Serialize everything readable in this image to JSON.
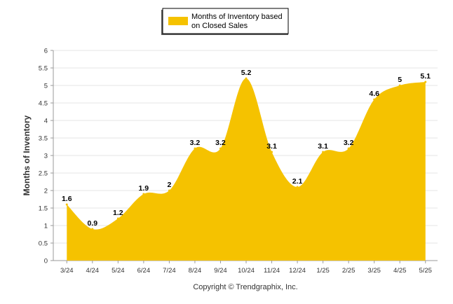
{
  "chart_data": {
    "type": "area",
    "categories": [
      "3/24",
      "4/24",
      "5/24",
      "6/24",
      "7/24",
      "8/24",
      "9/24",
      "10/24",
      "11/24",
      "12/24",
      "1/25",
      "2/25",
      "3/25",
      "4/25",
      "5/25"
    ],
    "series": [
      {
        "name": "Months of Inventory based on Closed Sales",
        "values": [
          1.6,
          0.9,
          1.2,
          1.9,
          2,
          3.2,
          3.2,
          5.2,
          3.1,
          2.1,
          3.1,
          3.2,
          4.6,
          5,
          5.1
        ],
        "color": "#F5C200"
      }
    ],
    "data_labels": [
      "1.6",
      "0.9",
      "1.2",
      "1.9",
      "2",
      "3.2",
      "3.2",
      "5.2",
      "3.1",
      "2.1",
      "3.1",
      "3.2",
      "4.6",
      "5",
      "5.1"
    ],
    "ylabel": "Months of Inventory",
    "xlabel": "",
    "ylim": [
      0,
      6
    ],
    "yticks": [
      "0",
      "0.5",
      "1",
      "1.5",
      "2",
      "2.5",
      "3",
      "3.5",
      "4",
      "4.5",
      "5",
      "5.5",
      "6"
    ],
    "grid": true,
    "legend_position": "top-center",
    "legend_lines": [
      "Months of Inventory based",
      "on Closed Sales"
    ]
  },
  "footer": {
    "copyright": "Copyright © Trendgraphix, Inc."
  }
}
